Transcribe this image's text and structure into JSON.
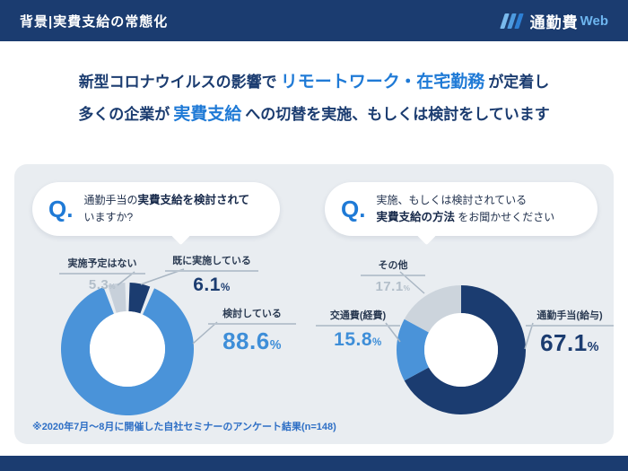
{
  "header": {
    "title": "背景|実費支給の常態化",
    "logo_text": "通勤費",
    "logo_suffix": "Web"
  },
  "headline": {
    "line1": {
      "pre": "新型コロナウイルスの影響で",
      "highlight": "リモートワーク・在宅勤務",
      "post": "が定着し"
    },
    "line2": {
      "pre": "多くの企業が",
      "highlight": "実費支給",
      "post": "への切替を実施、もしくは検討をしています"
    }
  },
  "questions": [
    {
      "marker": "Q.",
      "line1_normal": "通勤手当の",
      "line1_bold": "実費支給を検討されて",
      "line2_bold": "",
      "line2_normal": "いますか?"
    },
    {
      "marker": "Q.",
      "line1_normal": "実施、もしくは検討されている",
      "line1_bold": "",
      "line2_bold": "実費支給の方法",
      "line2_normal": " をお聞かせください"
    }
  ],
  "chart_data": [
    {
      "type": "pie",
      "donut": true,
      "title": "通勤手当の実費支給を検討されていますか?",
      "unit": "%",
      "segments": [
        {
          "label": "既に実施している",
          "value": 6.1,
          "color": "#1b3c70"
        },
        {
          "label": "検討している",
          "value": 88.6,
          "color": "#4a93d9"
        },
        {
          "label": "実施予定はない",
          "value": 5.3,
          "color": "#c7d0da"
        }
      ]
    },
    {
      "type": "pie",
      "donut": true,
      "title": "実施、もしくは検討されている実費支給の方法をお聞かせください",
      "unit": "%",
      "segments": [
        {
          "label": "通勤手当(給与)",
          "value": 67.1,
          "color": "#1b3c70"
        },
        {
          "label": "交通費(経費)",
          "value": 15.8,
          "color": "#4a93d9"
        },
        {
          "label": "その他",
          "value": 17.1,
          "color": "#ccd4dc"
        }
      ]
    }
  ],
  "footnote": "※2020年7月〜8月に開催した自社セミナーのアンケート結果(n=148)",
  "colors": {
    "navy": "#1b3c70",
    "accent_blue": "#1f7ad6",
    "chart_blue": "#4a93d9",
    "chart_gray": "#c7d0da",
    "panel_gray": "#e9edf1"
  }
}
